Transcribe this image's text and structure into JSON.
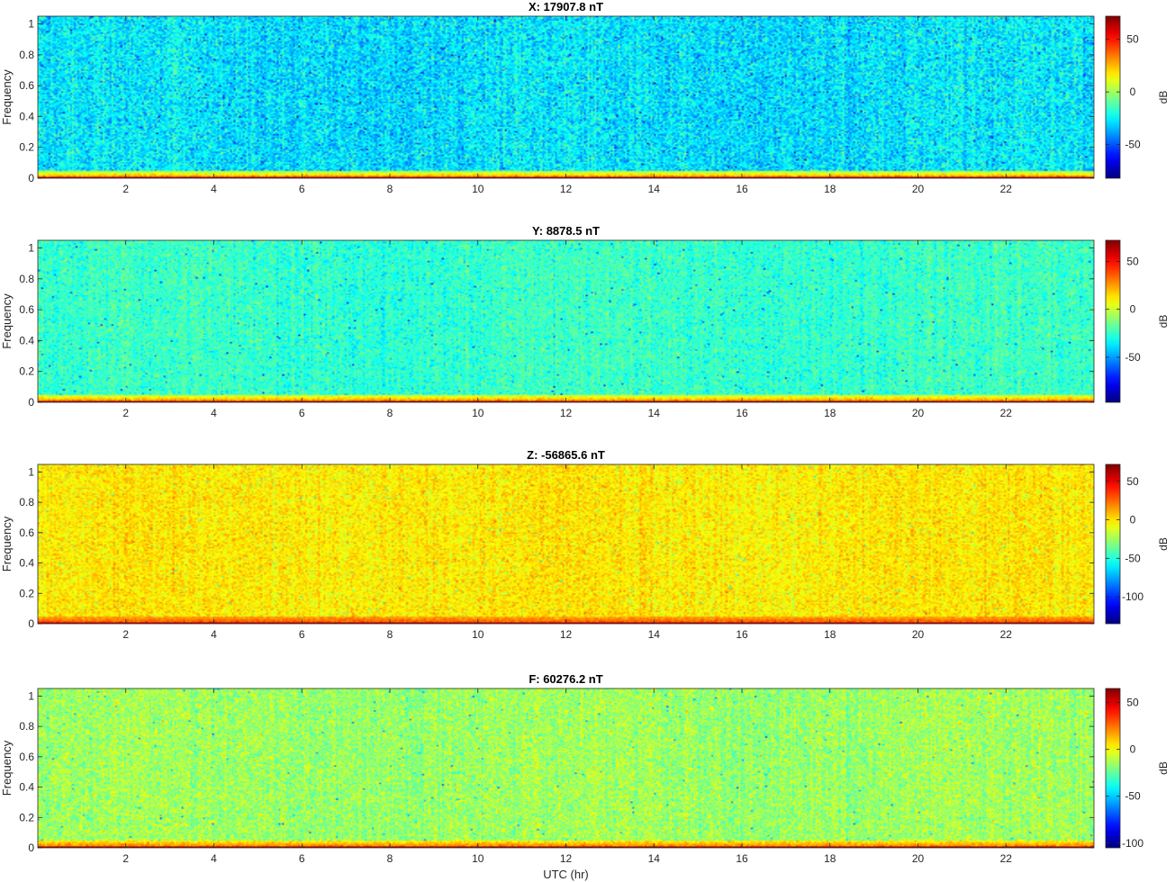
{
  "figure": {
    "xlabel": "UTC (hr)"
  },
  "chart_data": [
    {
      "type": "heatmap",
      "title": "X: 17907.8 nT",
      "xlabel": "",
      "ylabel": "Frequency",
      "xlim": [
        0,
        24
      ],
      "ylim": [
        0,
        1.05
      ],
      "xticks": [
        2,
        4,
        6,
        8,
        10,
        12,
        14,
        16,
        18,
        20,
        22
      ],
      "yticks": [
        0,
        0.2,
        0.4,
        0.6,
        0.8,
        1
      ],
      "ytick_labels": [
        "0",
        "0.2",
        "0.4",
        "0.6",
        "0.8",
        "1"
      ],
      "colorbar": {
        "label": "dB",
        "lim": [
          -82,
          72
        ],
        "ticks": [
          -50,
          0,
          50
        ],
        "colormap": "jet"
      },
      "levels_db": {
        "band_0_0.01": 65,
        "band_0.01_0.05": 28,
        "background": -28,
        "noise_std": 9
      }
    },
    {
      "type": "heatmap",
      "title": "Y: 8878.5 nT",
      "xlabel": "",
      "ylabel": "Frequency",
      "xlim": [
        0,
        24
      ],
      "ylim": [
        0,
        1.05
      ],
      "xticks": [
        2,
        4,
        6,
        8,
        10,
        12,
        14,
        16,
        18,
        20,
        22
      ],
      "yticks": [
        0,
        0.2,
        0.4,
        0.6,
        0.8,
        1
      ],
      "ytick_labels": [
        "0",
        "0.2",
        "0.4",
        "0.6",
        "0.8",
        "1"
      ],
      "colorbar": {
        "label": "dB",
        "lim": [
          -97,
          72
        ],
        "ticks": [
          -50,
          0,
          50
        ],
        "colormap": "jet"
      },
      "levels_db": {
        "band_0_0.01": 65,
        "band_0.01_0.05": 25,
        "background": -25,
        "noise_std": 7
      }
    },
    {
      "type": "heatmap",
      "title": "Z: -56865.6 nT",
      "xlabel": "",
      "ylabel": "Frequency",
      "xlim": [
        0,
        24
      ],
      "ylim": [
        0,
        1.05
      ],
      "xticks": [
        2,
        4,
        6,
        8,
        10,
        12,
        14,
        16,
        18,
        20,
        22
      ],
      "yticks": [
        0,
        0.2,
        0.4,
        0.6,
        0.8,
        1
      ],
      "ytick_labels": [
        "0",
        "0.2",
        "0.4",
        "0.6",
        "0.8",
        "1"
      ],
      "colorbar": {
        "label": "dB",
        "lim": [
          -135,
          72
        ],
        "ticks": [
          -100,
          -50,
          0,
          50
        ],
        "colormap": "jet"
      },
      "levels_db": {
        "band_0_0.01": 62,
        "band_0.01_0.05": 28,
        "background": -2,
        "noise_std": 8
      }
    },
    {
      "type": "heatmap",
      "title": "F: 60276.2 nT",
      "xlabel": "UTC (hr)",
      "ylabel": "Frequency",
      "xlim": [
        0,
        24
      ],
      "ylim": [
        0,
        1.05
      ],
      "xticks": [
        2,
        4,
        6,
        8,
        10,
        12,
        14,
        16,
        18,
        20,
        22
      ],
      "yticks": [
        0,
        0.2,
        0.4,
        0.6,
        0.8,
        1
      ],
      "ytick_labels": [
        "0",
        "0.2",
        "0.4",
        "0.6",
        "0.8",
        "1"
      ],
      "colorbar": {
        "label": "dB",
        "lim": [
          -105,
          65
        ],
        "ticks": [
          -100,
          -50,
          0,
          50
        ],
        "colormap": "jet"
      },
      "levels_db": {
        "band_0_0.01": 60,
        "band_0.01_0.05": 22,
        "background": -15,
        "noise_std": 8
      }
    }
  ]
}
